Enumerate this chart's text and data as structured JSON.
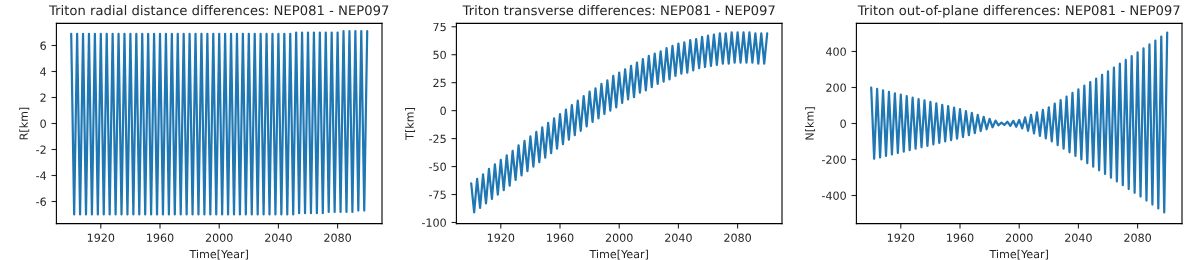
{
  "chart_data": [
    {
      "type": "line",
      "title": "Triton radial distance differences: NEP081 - NEP097",
      "xlabel": "Time[Year]",
      "ylabel": "R[km]",
      "x": [
        1900,
        1902,
        1904,
        1906,
        1908,
        1910,
        1912,
        1914,
        1916,
        1918,
        1920,
        1922,
        1924,
        1926,
        1928,
        1930,
        1932,
        1934,
        1936,
        1938,
        1940,
        1942,
        1944,
        1946,
        1948,
        1950,
        1952,
        1954,
        1956,
        1958,
        1960,
        1962,
        1964,
        1966,
        1968,
        1970,
        1972,
        1974,
        1976,
        1978,
        1980,
        1982,
        1984,
        1986,
        1988,
        1990,
        1992,
        1994,
        1996,
        1998,
        2000,
        2002,
        2004,
        2006,
        2008,
        2010,
        2012,
        2014,
        2016,
        2018,
        2020,
        2022,
        2024,
        2026,
        2028,
        2030,
        2032,
        2034,
        2036,
        2038,
        2040,
        2042,
        2044,
        2046,
        2048,
        2050,
        2052,
        2054,
        2056,
        2058,
        2060,
        2062,
        2064,
        2066,
        2068,
        2070,
        2072,
        2074,
        2076,
        2078,
        2080,
        2082,
        2084,
        2086,
        2088,
        2090,
        2092,
        2094,
        2096,
        2098,
        2100
      ],
      "series": [
        {
          "color": "#1f77b4",
          "values": [
            6.9,
            -7.0,
            6.9,
            -7.0,
            6.9,
            -7.0,
            6.9,
            -7.0,
            6.9,
            -7.0,
            6.9,
            -7.0,
            6.9,
            -7.0,
            6.9,
            -7.0,
            6.9,
            -7.0,
            6.9,
            -7.0,
            6.9,
            -7.0,
            6.9,
            -7.0,
            6.9,
            -7.0,
            6.9,
            -7.0,
            6.9,
            -7.0,
            6.9,
            -7.0,
            6.9,
            -7.0,
            6.9,
            -7.0,
            6.9,
            -7.0,
            6.9,
            -7.0,
            6.9,
            -7.0,
            6.9,
            -7.0,
            6.9,
            -7.0,
            6.9,
            -7.0,
            6.9,
            -7.0,
            6.9,
            -7.0,
            6.9,
            -7.0,
            6.9,
            -7.0,
            6.9,
            -7.0,
            6.9,
            -7.0,
            6.9,
            -7.0,
            6.9,
            -7.0,
            6.9,
            -7.0,
            6.9,
            -7.0,
            6.9,
            -7.0,
            6.9,
            -7.0,
            6.9,
            -7.0,
            6.9,
            -7.0,
            7.0,
            -6.9,
            7.0,
            -6.9,
            7.0,
            -6.9,
            7.0,
            -6.9,
            7.0,
            -6.9,
            7.0,
            -6.8,
            7.0,
            -6.8,
            7.0,
            -6.8,
            7.1,
            -6.8,
            7.1,
            -6.8,
            7.1,
            -6.7,
            7.1,
            -6.7,
            7.1
          ]
        }
      ],
      "xlim": [
        1890,
        2110
      ],
      "xticks": [
        1920,
        1960,
        2000,
        2040,
        2080
      ],
      "ylim": [
        -7.7,
        7.7
      ],
      "yticks": [
        -6,
        -4,
        -2,
        0,
        2,
        4,
        6
      ],
      "grid": false,
      "legend": false
    },
    {
      "type": "line",
      "title": "Triton transverse differences: NEP081 - NEP097",
      "xlabel": "Time[Year]",
      "ylabel": "T[km]",
      "x": [
        1900,
        1902,
        1904,
        1906,
        1908,
        1910,
        1912,
        1914,
        1916,
        1918,
        1920,
        1922,
        1924,
        1926,
        1928,
        1930,
        1932,
        1934,
        1936,
        1938,
        1940,
        1942,
        1944,
        1946,
        1948,
        1950,
        1952,
        1954,
        1956,
        1958,
        1960,
        1962,
        1964,
        1966,
        1968,
        1970,
        1972,
        1974,
        1976,
        1978,
        1980,
        1982,
        1984,
        1986,
        1988,
        1990,
        1992,
        1994,
        1996,
        1998,
        2000,
        2002,
        2004,
        2006,
        2008,
        2010,
        2012,
        2014,
        2016,
        2018,
        2020,
        2022,
        2024,
        2026,
        2028,
        2030,
        2032,
        2034,
        2036,
        2038,
        2040,
        2042,
        2044,
        2046,
        2048,
        2050,
        2052,
        2054,
        2056,
        2058,
        2060,
        2062,
        2064,
        2066,
        2068,
        2070,
        2072,
        2074,
        2076,
        2078,
        2080,
        2082,
        2084,
        2086,
        2088,
        2090,
        2092,
        2094,
        2096,
        2098,
        2100
      ],
      "series": [
        {
          "color": "#1f77b4",
          "values": [
            -65,
            -91,
            -61,
            -87,
            -57,
            -83,
            -52,
            -79,
            -48,
            -75,
            -44,
            -71,
            -40,
            -67,
            -36,
            -62,
            -31,
            -58,
            -27,
            -54,
            -23,
            -50,
            -19,
            -46,
            -15,
            -42,
            -11,
            -38,
            -7,
            -34,
            -3,
            -30,
            1,
            -26,
            5,
            -22,
            9,
            -18,
            13,
            -14,
            17,
            -10,
            20,
            -7,
            24,
            -3,
            27,
            0,
            31,
            3,
            34,
            7,
            37,
            10,
            40,
            12,
            43,
            16,
            46,
            18,
            49,
            21,
            51,
            24,
            53,
            26,
            56,
            28,
            58,
            31,
            60,
            33,
            61,
            34,
            63,
            36,
            64,
            38,
            66,
            39,
            67,
            40,
            68,
            41,
            69,
            42,
            69,
            42,
            70,
            43,
            70,
            43,
            70,
            43,
            70,
            43,
            69,
            42,
            69,
            42,
            69
          ]
        }
      ],
      "xlim": [
        1890,
        2110
      ],
      "xticks": [
        1920,
        1960,
        2000,
        2040,
        2080
      ],
      "ylim": [
        -101,
        78
      ],
      "yticks": [
        -100,
        -75,
        -50,
        -25,
        0,
        25,
        50,
        75
      ],
      "grid": false,
      "legend": false
    },
    {
      "type": "line",
      "title": "Triton out-of-plane differences: NEP081 - NEP097",
      "xlabel": "Time[Year]",
      "ylabel": "N[km]",
      "x": [
        1900,
        1902,
        1904,
        1906,
        1908,
        1910,
        1912,
        1914,
        1916,
        1918,
        1920,
        1922,
        1924,
        1926,
        1928,
        1930,
        1932,
        1934,
        1936,
        1938,
        1940,
        1942,
        1944,
        1946,
        1948,
        1950,
        1952,
        1954,
        1956,
        1958,
        1960,
        1962,
        1964,
        1966,
        1968,
        1970,
        1972,
        1974,
        1976,
        1978,
        1980,
        1982,
        1984,
        1986,
        1988,
        1990,
        1992,
        1994,
        1996,
        1998,
        2000,
        2002,
        2004,
        2006,
        2008,
        2010,
        2012,
        2014,
        2016,
        2018,
        2020,
        2022,
        2024,
        2026,
        2028,
        2030,
        2032,
        2034,
        2036,
        2038,
        2040,
        2042,
        2044,
        2046,
        2048,
        2050,
        2052,
        2054,
        2056,
        2058,
        2060,
        2062,
        2064,
        2066,
        2068,
        2070,
        2072,
        2074,
        2076,
        2078,
        2080,
        2082,
        2084,
        2086,
        2088,
        2090,
        2092,
        2094,
        2096,
        2098,
        2100
      ],
      "series": [
        {
          "color": "#1f77b4",
          "values": [
            200,
            -196,
            192,
            -188,
            184,
            -180,
            176,
            -172,
            168,
            -164,
            160,
            -156,
            152,
            -148,
            144,
            -140,
            136,
            -132,
            128,
            -124,
            120,
            -116,
            112,
            -108,
            104,
            -100,
            96,
            -92,
            88,
            -84,
            80,
            -75,
            69,
            -64,
            59,
            -53,
            48,
            -42,
            37,
            -32,
            26,
            -21,
            16,
            -10,
            5,
            -8,
            10,
            -13,
            15,
            -18,
            20,
            -27,
            34,
            -41,
            48,
            -55,
            62,
            -69,
            76,
            -83,
            90,
            -100,
            110,
            -120,
            130,
            -140,
            150,
            -160,
            170,
            -180,
            190,
            -200,
            210,
            -220,
            230,
            -240,
            250,
            -260,
            270,
            -280,
            290,
            -301,
            311,
            -322,
            332,
            -343,
            353,
            -364,
            374,
            -385,
            395,
            -406,
            417,
            -428,
            439,
            -450,
            461,
            -472,
            483,
            -494,
            505
          ]
        }
      ],
      "xlim": [
        1890,
        2110
      ],
      "xticks": [
        1920,
        1960,
        2000,
        2040,
        2080
      ],
      "ylim": [
        -556,
        556
      ],
      "yticks": [
        -400,
        -200,
        0,
        200,
        400
      ],
      "grid": false,
      "legend": false
    }
  ]
}
